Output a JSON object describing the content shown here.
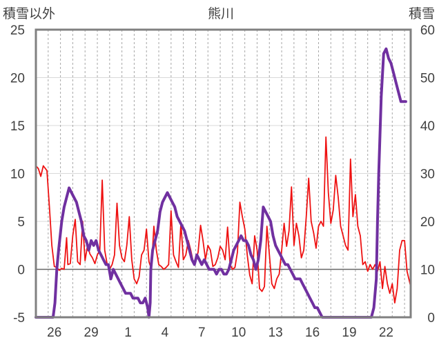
{
  "chart_data": {
    "type": "line",
    "title": "熊川",
    "left_axis_label": "積雪以外",
    "right_axis_label": "積雪",
    "left_ylim": [
      -5,
      25
    ],
    "left_yticks": [
      "25",
      "20",
      "15",
      "10",
      "5",
      "0",
      "-5"
    ],
    "right_ylim": [
      0,
      60
    ],
    "right_yticks": [
      "60",
      "50",
      "40",
      "30",
      "20",
      "10",
      "0"
    ],
    "xlim": [
      0,
      30.5
    ],
    "x_ticks": [
      {
        "x": 1.5,
        "label": "26"
      },
      {
        "x": 4.5,
        "label": "29"
      },
      {
        "x": 7.5,
        "label": "1"
      },
      {
        "x": 10.5,
        "label": "4"
      },
      {
        "x": 13.5,
        "label": "7"
      },
      {
        "x": 16.5,
        "label": "10"
      },
      {
        "x": 19.5,
        "label": "13"
      },
      {
        "x": 22.5,
        "label": "16"
      },
      {
        "x": 25.5,
        "label": "19"
      },
      {
        "x": 28.5,
        "label": "22"
      }
    ],
    "gridlines": "daily dashed vertical, solid horizontal",
    "colors": {
      "temperature": "#ee1111",
      "snow": "#7030a0",
      "frame": "#808080",
      "zero_line": "#666666"
    },
    "series": [
      {
        "axis": "left",
        "color": "#ee1111",
        "points": [
          [
            0,
            10.8
          ],
          [
            0.2,
            10.5
          ],
          [
            0.4,
            9.7
          ],
          [
            0.6,
            10.8
          ],
          [
            0.9,
            10.3
          ],
          [
            1.1,
            6.5
          ],
          [
            1.3,
            2.5
          ],
          [
            1.5,
            0.3
          ],
          [
            1.7,
            0.2
          ],
          [
            1.9,
            -0.1
          ],
          [
            2.1,
            0.1
          ],
          [
            2.3,
            0.0
          ],
          [
            2.5,
            3.3
          ],
          [
            2.6,
            0.5
          ],
          [
            2.8,
            0.6
          ],
          [
            3.0,
            3.5
          ],
          [
            3.2,
            5.2
          ],
          [
            3.4,
            0.8
          ],
          [
            3.6,
            0.5
          ],
          [
            3.8,
            5.0
          ],
          [
            4.0,
            0.9
          ],
          [
            4.2,
            2.5
          ],
          [
            4.4,
            1.6
          ],
          [
            4.6,
            1.2
          ],
          [
            4.8,
            0.6
          ],
          [
            5.0,
            1.5
          ],
          [
            5.2,
            2.0
          ],
          [
            5.4,
            9.3
          ],
          [
            5.6,
            2.0
          ],
          [
            5.8,
            0.5
          ],
          [
            6.0,
            0.0
          ],
          [
            6.2,
            0.5
          ],
          [
            6.4,
            1.5
          ],
          [
            6.6,
            6.9
          ],
          [
            6.8,
            2.5
          ],
          [
            7.0,
            1.2
          ],
          [
            7.2,
            0.8
          ],
          [
            7.4,
            2.5
          ],
          [
            7.6,
            5.5
          ],
          [
            7.8,
            1.0
          ],
          [
            8.0,
            -1.0
          ],
          [
            8.2,
            -1.5
          ],
          [
            8.4,
            -0.8
          ],
          [
            8.6,
            1.5
          ],
          [
            8.8,
            2.0
          ],
          [
            9.0,
            4.2
          ],
          [
            9.2,
            0.8
          ],
          [
            9.4,
            0.0
          ],
          [
            9.6,
            4.5
          ],
          [
            9.8,
            2.0
          ],
          [
            10.0,
            0.5
          ],
          [
            10.2,
            0.3
          ],
          [
            10.4,
            0.0
          ],
          [
            10.6,
            0.2
          ],
          [
            10.8,
            0.5
          ],
          [
            11.0,
            6.1
          ],
          [
            11.2,
            1.5
          ],
          [
            11.4,
            0.8
          ],
          [
            11.6,
            0.2
          ],
          [
            11.8,
            4.8
          ],
          [
            12.0,
            1.0
          ],
          [
            12.2,
            1.5
          ],
          [
            12.4,
            3.0
          ],
          [
            12.6,
            2.0
          ],
          [
            12.8,
            0.8
          ],
          [
            13.0,
            0.8
          ],
          [
            13.2,
            1.8
          ],
          [
            13.4,
            4.6
          ],
          [
            13.6,
            3.0
          ],
          [
            13.8,
            1.0
          ],
          [
            14.0,
            2.5
          ],
          [
            14.2,
            2.0
          ],
          [
            14.4,
            0.3
          ],
          [
            14.6,
            0.5
          ],
          [
            14.8,
            1.2
          ],
          [
            15.0,
            2.4
          ],
          [
            15.2,
            2.0
          ],
          [
            15.4,
            1.0
          ],
          [
            15.6,
            4.4
          ],
          [
            15.8,
            0.5
          ],
          [
            16.0,
            0.0
          ],
          [
            16.2,
            0.2
          ],
          [
            16.4,
            1.8
          ],
          [
            16.6,
            7.0
          ],
          [
            16.8,
            5.5
          ],
          [
            17.0,
            4.2
          ],
          [
            17.2,
            1.5
          ],
          [
            17.4,
            -0.6
          ],
          [
            17.6,
            -1.5
          ],
          [
            17.8,
            3.5
          ],
          [
            18.0,
            2.0
          ],
          [
            18.2,
            -2.0
          ],
          [
            18.4,
            -2.3
          ],
          [
            18.6,
            -1.8
          ],
          [
            18.8,
            4.5
          ],
          [
            19.0,
            1.5
          ],
          [
            19.2,
            -1.5
          ],
          [
            19.4,
            -2.0
          ],
          [
            19.6,
            -1.0
          ],
          [
            19.8,
            -0.5
          ],
          [
            20.0,
            2.0
          ],
          [
            20.2,
            4.8
          ],
          [
            20.4,
            2.4
          ],
          [
            20.6,
            4.0
          ],
          [
            20.8,
            8.6
          ],
          [
            21.0,
            2.5
          ],
          [
            21.2,
            4.8
          ],
          [
            21.4,
            3.5
          ],
          [
            21.6,
            1.2
          ],
          [
            21.8,
            2.0
          ],
          [
            22.0,
            5.5
          ],
          [
            22.2,
            9.5
          ],
          [
            22.4,
            5.0
          ],
          [
            22.6,
            3.8
          ],
          [
            22.8,
            2.2
          ],
          [
            23.0,
            4.5
          ],
          [
            23.2,
            5.0
          ],
          [
            23.4,
            4.5
          ],
          [
            23.6,
            13.8
          ],
          [
            23.8,
            8.0
          ],
          [
            24.0,
            4.8
          ],
          [
            24.2,
            6.2
          ],
          [
            24.4,
            9.8
          ],
          [
            24.6,
            7.5
          ],
          [
            24.8,
            4.5
          ],
          [
            25.0,
            3.5
          ],
          [
            25.2,
            2.5
          ],
          [
            25.4,
            2.0
          ],
          [
            25.6,
            11.5
          ],
          [
            25.8,
            5.5
          ],
          [
            26.0,
            7.8
          ],
          [
            26.2,
            4.5
          ],
          [
            26.4,
            3.5
          ],
          [
            26.6,
            0.5
          ],
          [
            26.8,
            0.8
          ],
          [
            27.0,
            -0.2
          ],
          [
            27.2,
            0.5
          ],
          [
            27.4,
            0.0
          ],
          [
            27.6,
            0.5
          ],
          [
            27.8,
            -0.2
          ],
          [
            28.0,
            0.8
          ],
          [
            28.2,
            -2.0
          ],
          [
            28.4,
            0.3
          ],
          [
            28.6,
            -1.5
          ],
          [
            28.8,
            -2.5
          ],
          [
            29.0,
            -1.5
          ],
          [
            29.2,
            -3.5
          ],
          [
            29.4,
            -2.0
          ],
          [
            29.6,
            2.0
          ],
          [
            29.8,
            3.0
          ],
          [
            30.0,
            3.0
          ],
          [
            30.2,
            -0.2
          ],
          [
            30.5,
            -1.8
          ]
        ]
      },
      {
        "axis": "right",
        "color": "#7030a0",
        "points": [
          [
            0,
            0
          ],
          [
            1.4,
            0
          ],
          [
            1.55,
            3
          ],
          [
            1.7,
            10
          ],
          [
            1.85,
            14
          ],
          [
            2.1,
            20
          ],
          [
            2.3,
            23
          ],
          [
            2.5,
            25
          ],
          [
            2.7,
            27
          ],
          [
            2.9,
            26
          ],
          [
            3.1,
            25
          ],
          [
            3.3,
            24
          ],
          [
            3.5,
            22
          ],
          [
            3.7,
            20
          ],
          [
            3.9,
            17
          ],
          [
            4.1,
            16
          ],
          [
            4.3,
            14
          ],
          [
            4.5,
            16
          ],
          [
            4.7,
            15
          ],
          [
            4.9,
            16
          ],
          [
            5.1,
            14
          ],
          [
            5.3,
            13
          ],
          [
            5.5,
            12
          ],
          [
            5.7,
            11
          ],
          [
            5.9,
            11
          ],
          [
            6.1,
            8
          ],
          [
            6.3,
            10
          ],
          [
            6.5,
            9
          ],
          [
            6.7,
            8
          ],
          [
            6.9,
            7
          ],
          [
            7.1,
            6
          ],
          [
            7.3,
            5
          ],
          [
            7.5,
            5
          ],
          [
            7.7,
            5
          ],
          [
            7.9,
            4
          ],
          [
            8.1,
            4
          ],
          [
            8.3,
            4
          ],
          [
            8.5,
            3
          ],
          [
            8.7,
            3
          ],
          [
            8.9,
            4
          ],
          [
            9.1,
            2
          ],
          [
            9.2,
            0
          ],
          [
            9.3,
            3
          ],
          [
            9.35,
            10
          ],
          [
            9.5,
            14
          ],
          [
            9.7,
            16
          ],
          [
            9.9,
            18
          ],
          [
            10.1,
            22
          ],
          [
            10.3,
            24
          ],
          [
            10.5,
            25
          ],
          [
            10.7,
            26
          ],
          [
            10.9,
            25
          ],
          [
            11.1,
            24
          ],
          [
            11.3,
            23
          ],
          [
            11.5,
            21
          ],
          [
            11.7,
            20
          ],
          [
            11.9,
            19
          ],
          [
            12.1,
            18
          ],
          [
            12.3,
            16
          ],
          [
            12.5,
            14
          ],
          [
            12.7,
            12
          ],
          [
            12.9,
            11
          ],
          [
            13.1,
            13
          ],
          [
            13.3,
            12
          ],
          [
            13.5,
            11
          ],
          [
            13.7,
            12
          ],
          [
            13.9,
            11
          ],
          [
            14.1,
            10
          ],
          [
            14.3,
            10
          ],
          [
            14.5,
            10
          ],
          [
            14.7,
            9
          ],
          [
            14.9,
            10
          ],
          [
            15.1,
            10
          ],
          [
            15.3,
            9
          ],
          [
            15.5,
            9
          ],
          [
            15.7,
            10
          ],
          [
            15.9,
            12
          ],
          [
            16.1,
            14
          ],
          [
            16.3,
            15
          ],
          [
            16.5,
            16
          ],
          [
            16.7,
            17
          ],
          [
            16.9,
            16
          ],
          [
            17.1,
            16
          ],
          [
            17.3,
            15
          ],
          [
            17.5,
            13
          ],
          [
            17.7,
            12
          ],
          [
            17.9,
            10
          ],
          [
            18.1,
            12
          ],
          [
            18.3,
            16
          ],
          [
            18.5,
            23
          ],
          [
            18.7,
            22
          ],
          [
            18.9,
            21
          ],
          [
            19.1,
            20
          ],
          [
            19.3,
            17
          ],
          [
            19.5,
            15
          ],
          [
            19.7,
            14
          ],
          [
            19.9,
            13
          ],
          [
            20.1,
            12
          ],
          [
            20.3,
            11
          ],
          [
            20.5,
            11
          ],
          [
            20.7,
            10
          ],
          [
            20.9,
            9
          ],
          [
            21.1,
            8
          ],
          [
            21.3,
            8
          ],
          [
            21.5,
            8
          ],
          [
            21.7,
            7
          ],
          [
            21.9,
            6
          ],
          [
            22.1,
            5
          ],
          [
            22.3,
            4
          ],
          [
            22.5,
            3
          ],
          [
            22.7,
            2
          ],
          [
            22.9,
            2
          ],
          [
            23.1,
            1
          ],
          [
            23.3,
            0
          ],
          [
            26.2,
            0
          ],
          [
            26.5,
            0
          ],
          [
            27.0,
            0
          ],
          [
            27.3,
            0
          ],
          [
            27.5,
            2
          ],
          [
            27.7,
            8
          ],
          [
            27.8,
            20
          ],
          [
            27.9,
            30
          ],
          [
            28.0,
            38
          ],
          [
            28.1,
            46
          ],
          [
            28.3,
            55
          ],
          [
            28.5,
            56
          ],
          [
            28.7,
            54
          ],
          [
            28.9,
            53
          ],
          [
            29.1,
            51
          ],
          [
            29.3,
            49
          ],
          [
            29.5,
            47
          ],
          [
            29.7,
            45
          ],
          [
            29.9,
            45
          ],
          [
            30.1,
            45
          ]
        ]
      }
    ]
  }
}
